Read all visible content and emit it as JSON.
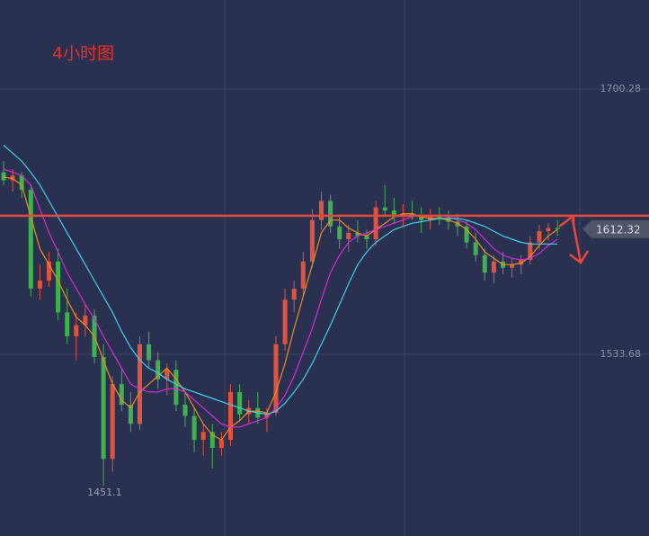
{
  "chart_data": {
    "type": "candlestick",
    "title": "4小时图",
    "ylim": [
      1419.6,
      1756.2
    ],
    "yticks": [
      1533.68,
      1700.28
    ],
    "grid": true,
    "up_color": "#e0533f",
    "down_color": "#3fb24f",
    "candles": [
      [
        1648,
        1655,
        1640,
        1643
      ],
      [
        1643,
        1650,
        1636,
        1646
      ],
      [
        1646,
        1648,
        1632,
        1637
      ],
      [
        1637,
        1640,
        1570,
        1575
      ],
      [
        1575,
        1590,
        1568,
        1580
      ],
      [
        1580,
        1598,
        1576,
        1592
      ],
      [
        1592,
        1600,
        1555,
        1560
      ],
      [
        1560,
        1575,
        1540,
        1545
      ],
      [
        1545,
        1560,
        1530,
        1552
      ],
      [
        1552,
        1565,
        1545,
        1558
      ],
      [
        1558,
        1562,
        1528,
        1532
      ],
      [
        1532,
        1540,
        1451.1,
        1468
      ],
      [
        1468,
        1520,
        1460,
        1515
      ],
      [
        1515,
        1525,
        1498,
        1502
      ],
      [
        1502,
        1510,
        1485,
        1490
      ],
      [
        1490,
        1545,
        1486,
        1540
      ],
      [
        1540,
        1548,
        1525,
        1530
      ],
      [
        1530,
        1535,
        1512,
        1518
      ],
      [
        1518,
        1528,
        1508,
        1524
      ],
      [
        1524,
        1530,
        1498,
        1502
      ],
      [
        1502,
        1510,
        1488,
        1495
      ],
      [
        1495,
        1500,
        1472,
        1480
      ],
      [
        1480,
        1490,
        1470,
        1485
      ],
      [
        1485,
        1490,
        1462,
        1475
      ],
      [
        1475,
        1485,
        1470,
        1480
      ],
      [
        1480,
        1515,
        1476,
        1510
      ],
      [
        1510,
        1515,
        1492,
        1496
      ],
      [
        1496,
        1505,
        1490,
        1500
      ],
      [
        1500,
        1510,
        1490,
        1494
      ],
      [
        1494,
        1500,
        1485,
        1497
      ],
      [
        1497,
        1545,
        1495,
        1540
      ],
      [
        1540,
        1575,
        1536,
        1568
      ],
      [
        1568,
        1580,
        1560,
        1575
      ],
      [
        1575,
        1598,
        1570,
        1592
      ],
      [
        1592,
        1625,
        1588,
        1618
      ],
      [
        1618,
        1636,
        1612,
        1630
      ],
      [
        1630,
        1634,
        1610,
        1614
      ],
      [
        1614,
        1620,
        1600,
        1606
      ],
      [
        1606,
        1615,
        1598,
        1610
      ],
      [
        1610,
        1618,
        1604,
        1608
      ],
      [
        1608,
        1612,
        1600,
        1606
      ],
      [
        1606,
        1630,
        1602,
        1626
      ],
      [
        1626,
        1640,
        1620,
        1624
      ],
      [
        1624,
        1632,
        1616,
        1621
      ],
      [
        1621,
        1628,
        1614,
        1622
      ],
      [
        1622,
        1630,
        1618,
        1620
      ],
      [
        1620,
        1626,
        1610,
        1618
      ],
      [
        1618,
        1625,
        1612,
        1620
      ],
      [
        1620,
        1626,
        1615,
        1619
      ],
      [
        1619,
        1624,
        1612,
        1617
      ],
      [
        1617,
        1622,
        1608,
        1614
      ],
      [
        1614,
        1618,
        1600,
        1604
      ],
      [
        1604,
        1610,
        1592,
        1596
      ],
      [
        1596,
        1600,
        1580,
        1585
      ],
      [
        1585,
        1596,
        1578,
        1592
      ],
      [
        1592,
        1598,
        1584,
        1588
      ],
      [
        1588,
        1594,
        1582,
        1590
      ],
      [
        1590,
        1596,
        1584,
        1593
      ],
      [
        1593,
        1608,
        1590,
        1604
      ],
      [
        1604,
        1615,
        1600,
        1611
      ],
      [
        1611,
        1616,
        1605,
        1613
      ],
      [
        1613,
        1618,
        1608,
        1612.32
      ]
    ],
    "overlays": [
      {
        "color": "#f08a1c",
        "values": [
          1645,
          1644,
          1640,
          1620,
          1600,
          1590,
          1580,
          1568,
          1557,
          1552,
          1545,
          1530,
          1515,
          1505,
          1500,
          1510,
          1515,
          1520,
          1525,
          1518,
          1510,
          1500,
          1490,
          1483,
          1480,
          1488,
          1492,
          1498,
          1498,
          1497,
          1510,
          1528,
          1550,
          1570,
          1590,
          1610,
          1618,
          1618,
          1613,
          1610,
          1608,
          1612,
          1616,
          1620,
          1622,
          1622,
          1620,
          1619,
          1619,
          1618,
          1616,
          1612,
          1606,
          1598,
          1594,
          1590,
          1590,
          1591,
          1595,
          1602,
          1608,
          1612
        ]
      },
      {
        "color": "#d62ad6",
        "values": [
          1650,
          1648,
          1646,
          1640,
          1625,
          1610,
          1598,
          1585,
          1575,
          1565,
          1556,
          1545,
          1535,
          1525,
          1515,
          1512,
          1510,
          1510,
          1512,
          1512,
          1510,
          1505,
          1500,
          1495,
          1490,
          1488,
          1488,
          1490,
          1492,
          1494,
          1500,
          1508,
          1520,
          1535,
          1550,
          1568,
          1585,
          1596,
          1604,
          1608,
          1610,
          1612,
          1614,
          1616,
          1618,
          1620,
          1621,
          1621,
          1621,
          1620,
          1618,
          1616,
          1612,
          1606,
          1600,
          1596,
          1594,
          1593,
          1594,
          1597,
          1602,
          1606
        ]
      },
      {
        "color": "#3fd0e8",
        "values": [
          1665,
          1660,
          1655,
          1648,
          1640,
          1630,
          1620,
          1610,
          1600,
          1590,
          1580,
          1570,
          1560,
          1548,
          1538,
          1530,
          1525,
          1522,
          1518,
          1515,
          1512,
          1510,
          1508,
          1506,
          1504,
          1502,
          1500,
          1498,
          1497,
          1496,
          1498,
          1503,
          1510,
          1518,
          1528,
          1540,
          1552,
          1565,
          1578,
          1590,
          1598,
          1604,
          1608,
          1612,
          1614,
          1616,
          1617,
          1618,
          1619,
          1619,
          1619,
          1618,
          1616,
          1614,
          1611,
          1608,
          1606,
          1604,
          1603,
          1603,
          1603,
          1603
        ]
      }
    ],
    "resistance": 1620.7,
    "last_price": 1612.32,
    "low_label": 1451.1
  }
}
